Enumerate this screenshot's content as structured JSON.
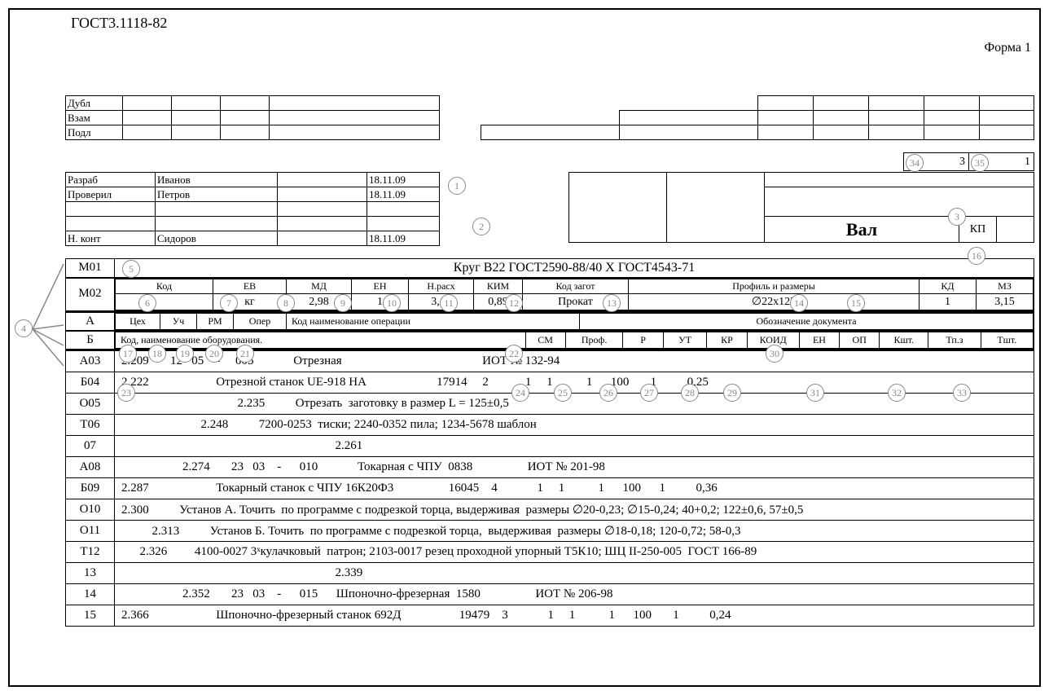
{
  "gost": "ГОСТ3.1118-82",
  "forma": "Форма 1",
  "meta_rows": [
    "Дубл",
    "Взам",
    "Подл"
  ],
  "approvals": [
    {
      "role": "Разраб",
      "name": "Иванов",
      "date": "18.11.09"
    },
    {
      "role": "Проверил",
      "name": "Петров",
      "date": "18.11.09"
    },
    {
      "role": "",
      "name": "",
      "date": ""
    },
    {
      "role": "",
      "name": "",
      "date": ""
    },
    {
      "role": "Н. конт",
      "name": "Сидоров",
      "date": "18.11.09"
    }
  ],
  "title": "Вал",
  "kp": "КП",
  "page_count": "3",
  "page_no": "1",
  "m01_code": "М01",
  "m01_text": "Круг В22  ГОСТ2590-88/40 Х ГОСТ4543-71",
  "m02_code": "М02",
  "m02_head": [
    "Код",
    "ЕВ",
    "МД",
    "ЕН",
    "Н.расх",
    "КИМ",
    "Код загот",
    "Профиль и размеры",
    "КД",
    "МЗ"
  ],
  "m02_val": [
    "",
    "кг",
    "2,98",
    "1",
    "3,18",
    "0,89",
    "Прокат",
    "∅22x125",
    "1",
    "3,15"
  ],
  "a_code": "А",
  "a_head": [
    "Цех",
    "Уч",
    "РМ",
    "Опер",
    "Код наименование операции",
    "Обозначение документа"
  ],
  "b_code": "Б",
  "b_head_left": "Код, наименование оборудования.",
  "b_head_right": [
    "СМ",
    "Проф.",
    "Р",
    "УТ",
    "КР",
    "КОИД",
    "ЕН",
    "ОП",
    "Кшт.",
    "Тп.з",
    "Тшт."
  ],
  "rows": [
    {
      "c": "А03",
      "t": "2.209       12   05    -     005             Отрезная                                              ИОТ № 132-94"
    },
    {
      "c": "Б04",
      "t": "2.222                      Отрезной станок UE-918 НА                       17914     2            1     1           1      100       1          0,25"
    },
    {
      "c": "О05",
      "t": "                                      2.235          Отрезать  заготовку в размер L = 125±0,5"
    },
    {
      "c": "Т06",
      "t": "                          2.248          7200-0253  тиски; 2240-0352 пила; 1234-5678 шаблон"
    },
    {
      "c": "07",
      "t": "                                                                      2.261"
    },
    {
      "c": "А08",
      "t": "                    2.274       23   03    -      010             Токарная с ЧПУ  0838                  ИОТ № 201-98"
    },
    {
      "c": "Б09",
      "t": "2.287                      Токарный станок с ЧПУ 16К20Ф3                  16045    4             1     1           1      100      1          0,36"
    },
    {
      "c": "О10",
      "t": "2.300          Установ А. Точить  по программе с подрезкой торца, выдерживая  размеры ∅20-0,23; ∅15-0,24; 40+0,2; 122±0,6, 57±0,5"
    },
    {
      "c": "О11",
      "t": "          2.313          Установ Б. Точить  по программе с подрезкой торца,  выдерживая  размеры ∅18-0,18; 120-0,72; 58-0,3"
    },
    {
      "c": "Т12",
      "t": "      2.326         4100-0027 3ˣкулачковый  патрон; 2103-0017 резец проходной упорный Т5К10; ШЦ II-250-005  ГОСТ 166-89"
    },
    {
      "c": "13",
      "t": "                                                                      2.339"
    },
    {
      "c": "14",
      "t": "                    2.352       23   03    -      015      Шпоночно-фрезерная  1580                  ИОТ № 206-98"
    },
    {
      "c": "15",
      "t": "2.366                      Шпоночно-фрезерный станок 692Д                   19479    3             1     1           1      100       1          0,24"
    }
  ],
  "bubbles": {
    "b1": "1",
    "b2": "2",
    "b3": "3",
    "b4": "4",
    "b5": "5",
    "b6": "6",
    "b7": "7",
    "b8": "8",
    "b9": "9",
    "b10": "10",
    "b11": "11",
    "b12": "12",
    "b13": "13",
    "b14": "14",
    "b15": "15",
    "b16": "16",
    "b17": "17",
    "b18": "18",
    "b19": "19",
    "b20": "20",
    "b21": "21",
    "b22": "22",
    "b23": "23",
    "b24": "24",
    "b25": "25",
    "b26": "26",
    "b27": "27",
    "b28": "28",
    "b29": "29",
    "b30": "30",
    "b31": "31",
    "b32": "32",
    "b33": "33",
    "b34": "34",
    "b35": "35"
  },
  "colors": {
    "line": "#000000",
    "bubble": "#888888"
  }
}
